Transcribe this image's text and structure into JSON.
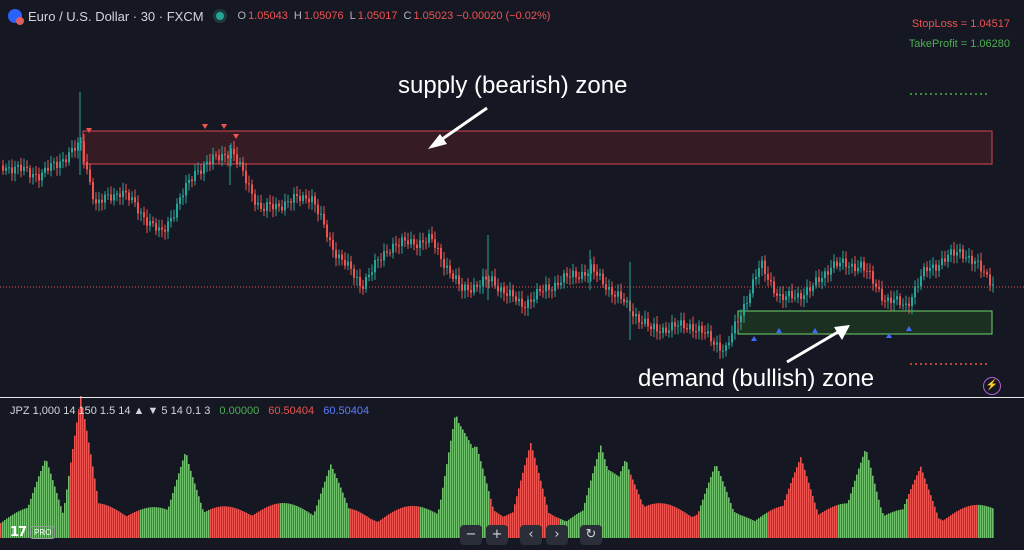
{
  "header": {
    "symbol_title": "Euro / U.S. Dollar · 30 · FXCM",
    "ohlc": [
      {
        "label": "O",
        "value": "1.05043"
      },
      {
        "label": "H",
        "value": "1.05076"
      },
      {
        "label": "L",
        "value": "1.05017"
      },
      {
        "label": "C",
        "value": "1.05023 −0.00020 (−0.02%)"
      }
    ]
  },
  "stats": {
    "stop_loss": "StopLoss = 1.04517",
    "take_profit": "TakeProfit = 1.06280"
  },
  "annotations": {
    "supply": "supply (bearish) zone",
    "demand": "demand (bullish) zone"
  },
  "indicator": {
    "params": "JPZ 1,000 14 150 1.5 14 ▲ ▼ 5 14 0.1 3",
    "val1": "0.00000",
    "val2": "60.50404",
    "val3": "60.50404"
  },
  "logo": {
    "text": "17",
    "badge": "PRO"
  },
  "toolbar": {
    "minus": "−",
    "plus": "+",
    "prev": "‹",
    "next": "›",
    "reset": "↻"
  },
  "colors": {
    "bull": "#26a69a",
    "bear": "#ef5350",
    "vol_up": "#6fc06a",
    "vol_down": "#ef5350"
  }
}
